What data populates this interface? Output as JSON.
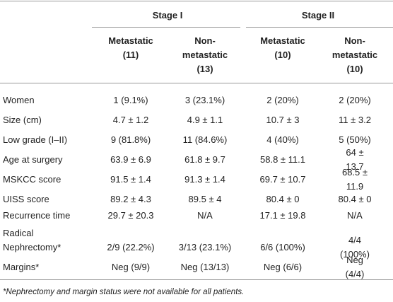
{
  "header": {
    "stage_groups": [
      "Stage I",
      "Stage II"
    ],
    "columns": [
      "Metastatic\n(11)",
      "Non-\nmetastatic\n(13)",
      "Metastatic\n(10)",
      "Non-\nmetastatic\n(10)"
    ]
  },
  "table": {
    "rows": [
      [
        "Women",
        "1 (9.1%)",
        "3 (23.1%)",
        "2 (20%)",
        "2 (20%)"
      ],
      [
        "Size (cm)",
        "4.7 ± 1.2",
        "4.9 ± 1.1",
        "10.7 ± 3",
        "11 ± 3.2"
      ],
      [
        "Low grade (I–II)",
        "9 (81.8%)",
        "11 (84.6%)",
        "4 (40%)",
        "5 (50%)"
      ],
      [
        "Age at surgery",
        "63.9 ± 6.9",
        "61.8 ± 9.7",
        "58.8 ± 11.1",
        "64 ± 13.7"
      ],
      [
        "MSKCC score",
        "91.5 ± 1.4",
        "91.3 ± 1.4",
        "69.7 ± 10.7",
        "68.5 ± 11.9"
      ],
      [
        "UISS score",
        "89.2 ± 4.3",
        "89.5 ± 4",
        "80.4 ± 0",
        "80.4 ± 0"
      ],
      [
        "Recurrence time",
        "29.7 ± 20.3",
        "N/A",
        "17.1 ± 19.8",
        "N/A"
      ],
      [
        "Radical\nNephrectomy*",
        "2/9 (22.2%)",
        "3/13 (23.1%)",
        "6/6 (100%)",
        "4/4 (100%)"
      ],
      [
        "Margins*",
        "Neg (9/9)",
        "Neg (13/13)",
        "Neg (6/6)",
        "Neg (4/4)"
      ]
    ]
  },
  "footnote": "*Nephrectomy and margin status were not available for all patients."
}
